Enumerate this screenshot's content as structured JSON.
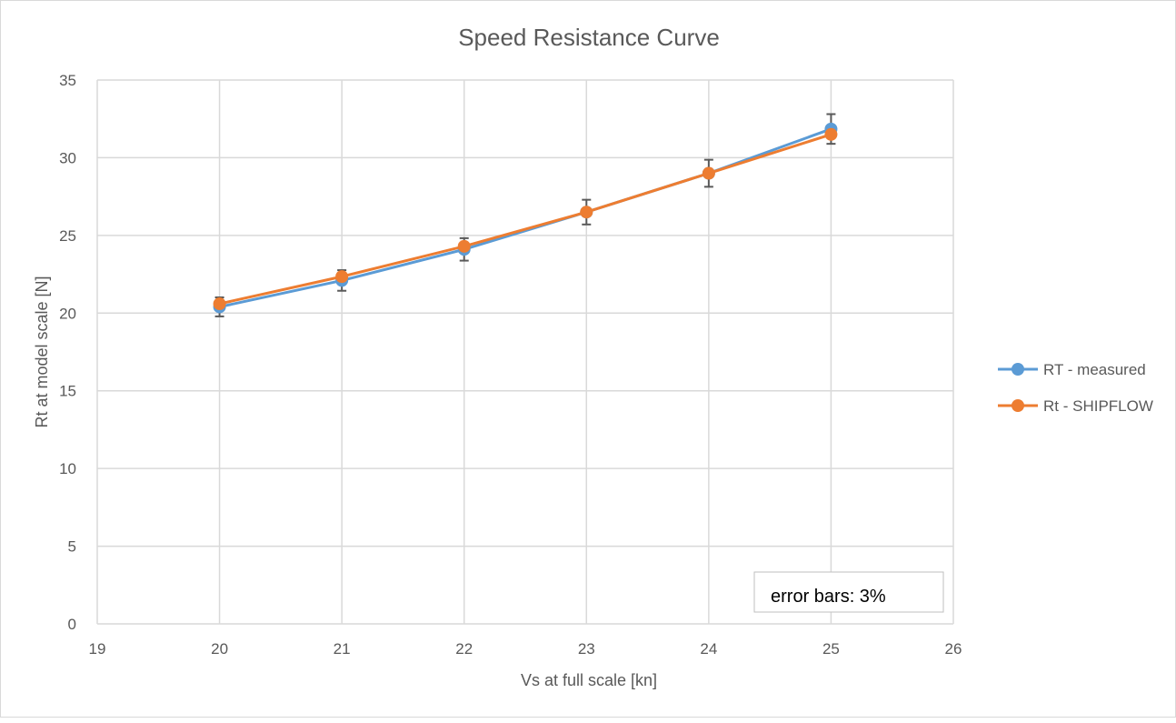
{
  "chart_data": {
    "type": "line",
    "title": "Speed Resistance Curve",
    "xlabel": "Vs at full scale [kn]",
    "ylabel": "Rt at model scale [N]",
    "xlim": [
      19,
      26
    ],
    "ylim": [
      0,
      35
    ],
    "xticks": [
      19,
      20,
      21,
      22,
      23,
      24,
      25,
      26
    ],
    "yticks": [
      0,
      5,
      10,
      15,
      20,
      25,
      30,
      35
    ],
    "grid": true,
    "legend_position": "right",
    "x": [
      20,
      21,
      22,
      23,
      24,
      25
    ],
    "series": [
      {
        "name": "RT - measured",
        "color": "#5b9bd5",
        "values": [
          20.4,
          22.1,
          24.1,
          26.5,
          29.0,
          31.85
        ],
        "error_bars_percent": 3
      },
      {
        "name": "Rt - SHIPFLOW",
        "color": "#ed7d31",
        "values": [
          20.6,
          22.35,
          24.3,
          26.5,
          29.0,
          31.5
        ]
      }
    ],
    "annotation": "error bars: 3%"
  }
}
